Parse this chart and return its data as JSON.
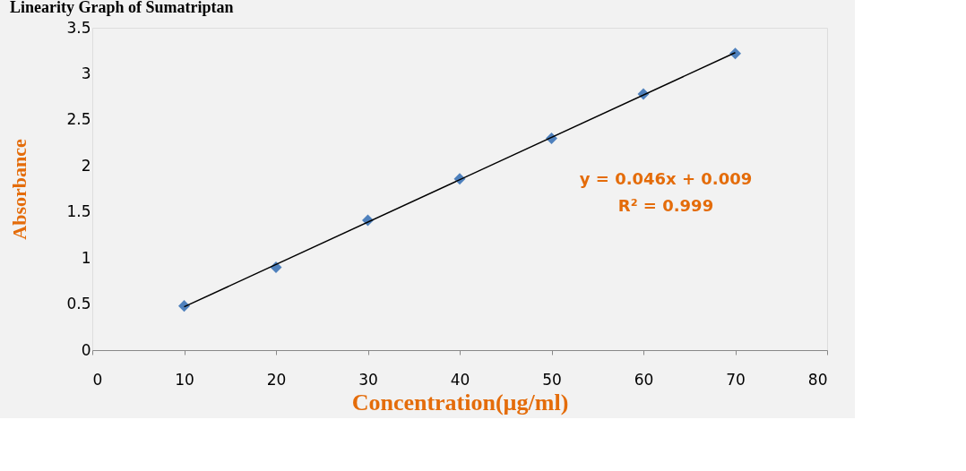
{
  "chart_data": {
    "type": "scatter",
    "title": "Linearity Graph of Sumatriptan",
    "xlabel": "Concentration(µg/ml)",
    "ylabel": "Absorbance",
    "xlim": [
      0,
      80
    ],
    "xticks": [
      0,
      10,
      20,
      30,
      40,
      50,
      60,
      70,
      80
    ],
    "ylim": [
      0,
      3.5
    ],
    "yticks": [
      0,
      0.5,
      1,
      1.5,
      2,
      2.5,
      3,
      3.5
    ],
    "grid": false,
    "legend": false,
    "x": [
      10,
      20,
      30,
      40,
      50,
      60,
      70
    ],
    "series": [
      {
        "color": "#4f81bd",
        "marker": "diamond",
        "values": [
          0.48,
          0.9,
          1.41,
          1.86,
          2.3,
          2.78,
          3.22
        ]
      },
      {
        "type": "line",
        "color": "#000000",
        "marker": "none",
        "line_style": "solid",
        "x": [
          10,
          70
        ],
        "values": [
          0.47,
          3.23
        ]
      }
    ],
    "annotations": [
      "y = 0.046x + 0.009",
      "R² = 0.999"
    ]
  }
}
